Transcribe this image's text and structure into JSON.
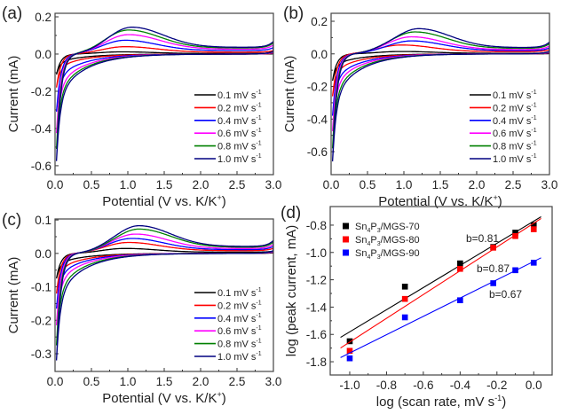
{
  "chart_data": [
    {
      "type": "line",
      "panel_label": "(a)",
      "xlabel": "Potential (V vs. K/K",
      "xlabel_sup": "+",
      "xlabel_end": ")",
      "ylabel": "Current (mA)",
      "xlim": [
        0,
        3.0
      ],
      "ylim": [
        -0.648,
        0.219
      ],
      "xticks": [
        0.0,
        0.5,
        1.0,
        1.5,
        2.0,
        2.5,
        3.0
      ],
      "yticks": [
        0.2,
        0.0,
        -0.2,
        -0.4,
        -0.6
      ],
      "legend_placement": "bottom-right",
      "series": [
        {
          "name": "0.1 mV s",
          "color": "#000000",
          "peak_current": 0.012,
          "peak_potential": 0.9,
          "min_current": -0.11
        },
        {
          "name": "0.2 mV s",
          "color": "#ff0000",
          "peak_current": 0.04,
          "peak_potential": 0.95,
          "min_current": -0.18
        },
        {
          "name": "0.4 mV s",
          "color": "#0000ff",
          "peak_current": 0.075,
          "peak_potential": 0.95,
          "min_current": -0.31
        },
        {
          "name": "0.6 mV s",
          "color": "#ff00ff",
          "peak_current": 0.105,
          "peak_potential": 1.0,
          "min_current": -0.425
        },
        {
          "name": "0.8 mV s",
          "color": "#008000",
          "peak_current": 0.13,
          "peak_potential": 1.0,
          "min_current": -0.51
        },
        {
          "name": "1.0 mV s",
          "color": "#000080",
          "peak_current": 0.145,
          "peak_potential": 1.05,
          "min_current": -0.575
        }
      ]
    },
    {
      "type": "line",
      "panel_label": "(b)",
      "xlabel": "Potential (V vs. K/K",
      "xlabel_sup": "+",
      "xlabel_end": ")",
      "ylabel": "Current (mA)",
      "xlim": [
        0,
        3.0
      ],
      "ylim": [
        -0.741,
        0.249
      ],
      "xticks": [
        0.0,
        0.5,
        1.0,
        1.5,
        2.0,
        2.5,
        3.0
      ],
      "yticks": [
        0.2,
        0.0,
        -0.2,
        -0.4,
        -0.6
      ],
      "legend_placement": "bottom-right",
      "series": [
        {
          "name": "0.1 mV s",
          "color": "#000000",
          "peak_current": 0.015,
          "peak_potential": 0.95,
          "min_current": -0.165
        },
        {
          "name": "0.2 mV s",
          "color": "#ff0000",
          "peak_current": 0.055,
          "peak_potential": 0.95,
          "min_current": -0.26
        },
        {
          "name": "0.4 mV s",
          "color": "#0000ff",
          "peak_current": 0.08,
          "peak_potential": 1.1,
          "min_current": -0.38
        },
        {
          "name": "0.6 mV s",
          "color": "#ff00ff",
          "peak_current": 0.105,
          "peak_potential": 1.1,
          "min_current": -0.475
        },
        {
          "name": "0.8 mV s",
          "color": "#008000",
          "peak_current": 0.135,
          "peak_potential": 1.15,
          "min_current": -0.58
        },
        {
          "name": "1.0 mV s",
          "color": "#000080",
          "peak_current": 0.155,
          "peak_potential": 1.2,
          "min_current": -0.66
        }
      ]
    },
    {
      "type": "line",
      "panel_label": "(c)",
      "xlabel": "Potential (V vs. K/K",
      "xlabel_sup": "+",
      "xlabel_end": ")",
      "ylabel": "Current (mA)",
      "xlim": [
        0,
        3.0
      ],
      "ylim": [
        -0.353,
        0.103
      ],
      "xticks": [
        0.0,
        0.5,
        1.0,
        1.5,
        2.0,
        2.5,
        3.0
      ],
      "yticks": [
        0.1,
        0.0,
        -0.1,
        -0.2,
        -0.3
      ],
      "legend_placement": "bottom-right",
      "series": [
        {
          "name": "0.1 mV s",
          "color": "#000000",
          "peak_current": 0.015,
          "peak_potential": 0.95,
          "min_current": -0.075
        },
        {
          "name": "0.2 mV s",
          "color": "#ff0000",
          "peak_current": 0.033,
          "peak_potential": 1.0,
          "min_current": -0.12
        },
        {
          "name": "0.4 mV s",
          "color": "#0000ff",
          "peak_current": 0.045,
          "peak_potential": 1.05,
          "min_current": -0.165
        },
        {
          "name": "0.6 mV s",
          "color": "#ff00ff",
          "peak_current": 0.058,
          "peak_potential": 1.1,
          "min_current": -0.215
        },
        {
          "name": "0.8 mV s",
          "color": "#008000",
          "peak_current": 0.073,
          "peak_potential": 1.15,
          "min_current": -0.275
        },
        {
          "name": "1.0 mV s",
          "color": "#000080",
          "peak_current": 0.083,
          "peak_potential": 1.15,
          "min_current": -0.32
        }
      ]
    },
    {
      "type": "scatter",
      "panel_label": "(d)",
      "xlabel": "log (scan rate, mV s",
      "xlabel_sup": "-1",
      "xlabel_end": ")",
      "ylabel": "log (peak current, mA)",
      "xlim": [
        -1.106,
        0.1
      ],
      "ylim": [
        -1.897,
        -0.664
      ],
      "xticks": [
        -1.0,
        -0.8,
        -0.6,
        -0.4,
        -0.2,
        0.0
      ],
      "yticks": [
        -0.8,
        -1.0,
        -1.2,
        -1.4,
        -1.6,
        -1.8
      ],
      "legend_placement": "top-left",
      "x": [
        -1.0,
        -0.7,
        -0.4,
        -0.22,
        -0.1,
        0.0
      ],
      "series": [
        {
          "name": "Sn4P3/MGS-70",
          "name_parts": [
            "Sn",
            "4",
            "P",
            "3",
            "/MGS-70"
          ],
          "color": "#000000",
          "values": [
            -1.65,
            -1.25,
            -1.08,
            -0.96,
            -0.855,
            -0.8
          ],
          "fit_slope": 0.81,
          "fit_intercept": -0.771,
          "annotation": "b=0.81"
        },
        {
          "name": "Sn4P3/MGS-80",
          "name_parts": [
            "Sn",
            "4",
            "P",
            "3",
            "/MGS-80"
          ],
          "color": "#ff0000",
          "values": [
            -1.72,
            -1.34,
            -1.12,
            -0.965,
            -0.88,
            -0.83
          ],
          "fit_slope": 0.87,
          "fit_intercept": -0.786,
          "annotation": "b=0.87"
        },
        {
          "name": "Sn4P3/MGS-90",
          "name_parts": [
            "Sn",
            "4",
            "P",
            "3",
            "/MGS-90"
          ],
          "color": "#0000ff",
          "values": [
            -1.775,
            -1.475,
            -1.35,
            -1.225,
            -1.13,
            -1.075
          ],
          "fit_slope": 0.67,
          "fit_intercept": -1.066,
          "annotation": "b=0.67"
        }
      ]
    }
  ],
  "legend_unit_sup": "-1"
}
